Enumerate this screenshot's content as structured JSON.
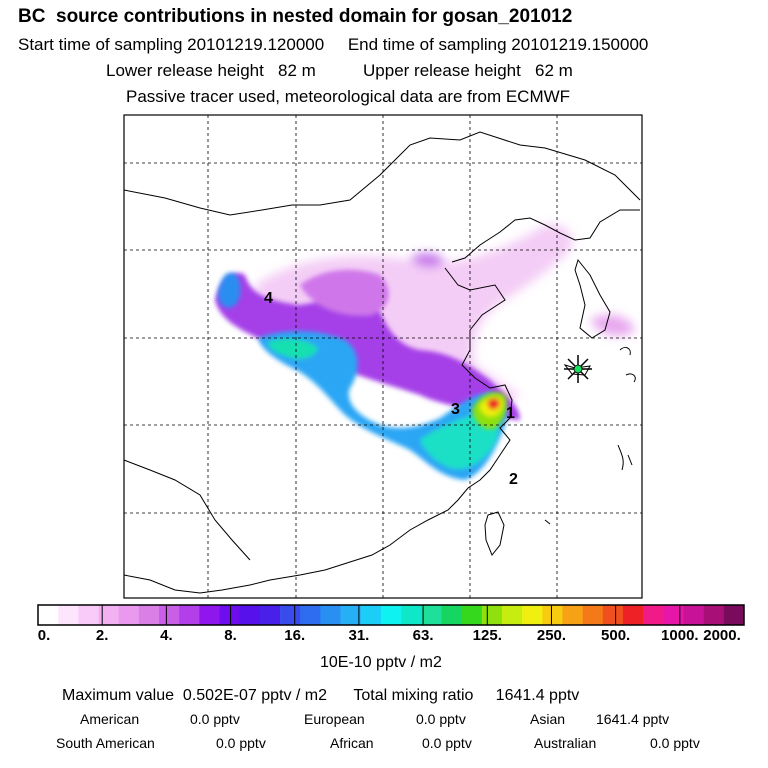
{
  "header": {
    "title": "BC  source contributions in nested domain for gosan_201012",
    "line1": "Start time of sampling 20101219.120000     End time of sampling 20101219.150000",
    "line2": "Lower release height   82 m          Upper release height   62 m",
    "line3": "Passive tracer used, meteorological data are from ECMWF"
  },
  "map": {
    "labels": [
      "1",
      "2",
      "3",
      "4"
    ],
    "receptor": "receptor-star"
  },
  "colorbar": {
    "ticks": [
      "0.",
      "2.",
      "4.",
      "8.",
      "16.",
      "31.",
      "63.",
      "125.",
      "250.",
      "500.",
      "1000.",
      "2000."
    ],
    "unit": "10E-10 pptv / m2",
    "colors": [
      "#ffffff",
      "#fde6fd",
      "#f8cbf8",
      "#f2b2f2",
      "#e999ee",
      "#d97fe6",
      "#c95fe6",
      "#b23fe9",
      "#8f17ee",
      "#6d0cec",
      "#5711ea",
      "#4820ea",
      "#3a4bec",
      "#2e6df0",
      "#2a8ff2",
      "#27aff6",
      "#1ccdf8",
      "#0ff2f2",
      "#0fe8c8",
      "#1fe09a",
      "#14d660",
      "#36d81e",
      "#8fe00d",
      "#c7ec10",
      "#f0f010",
      "#f7cc10",
      "#f6a214",
      "#f47a18",
      "#f0501d",
      "#ee2226",
      "#f01a88",
      "#e617a8",
      "#c81298",
      "#a81078",
      "#7a0a5c"
    ]
  },
  "summary": {
    "line1": "Maximum value  0.502E-07 pptv / m2      Total mixing ratio     1641.4 pptv",
    "row1": [
      {
        "name": "American",
        "value": "0.0 pptv"
      },
      {
        "name": "European",
        "value": "0.0 pptv"
      },
      {
        "name": "Asian",
        "value": "1641.4 pptv"
      }
    ],
    "row2": [
      {
        "name": "South American",
        "value": "0.0 pptv"
      },
      {
        "name": "African",
        "value": "0.0 pptv"
      },
      {
        "name": "Australian",
        "value": "0.0 pptv"
      }
    ]
  }
}
